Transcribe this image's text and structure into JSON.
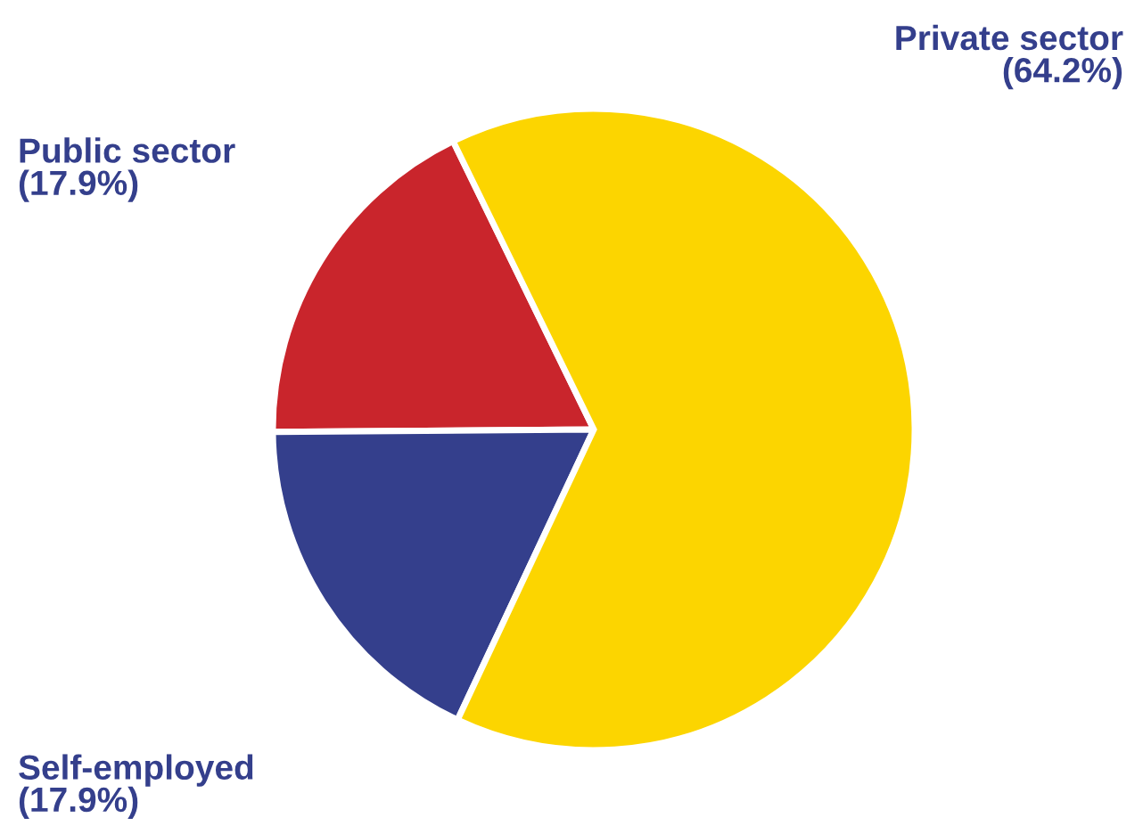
{
  "chart_data": {
    "type": "pie",
    "categories": [
      "Public sector",
      "Self-employed",
      "Private sector"
    ],
    "values": [
      17.9,
      17.9,
      64.2
    ],
    "value_labels": [
      "(17.9%)",
      "(17.9%)",
      "(64.2%)"
    ],
    "colors": [
      "#c9252c",
      "#343f8c",
      "#fcd500"
    ]
  }
}
